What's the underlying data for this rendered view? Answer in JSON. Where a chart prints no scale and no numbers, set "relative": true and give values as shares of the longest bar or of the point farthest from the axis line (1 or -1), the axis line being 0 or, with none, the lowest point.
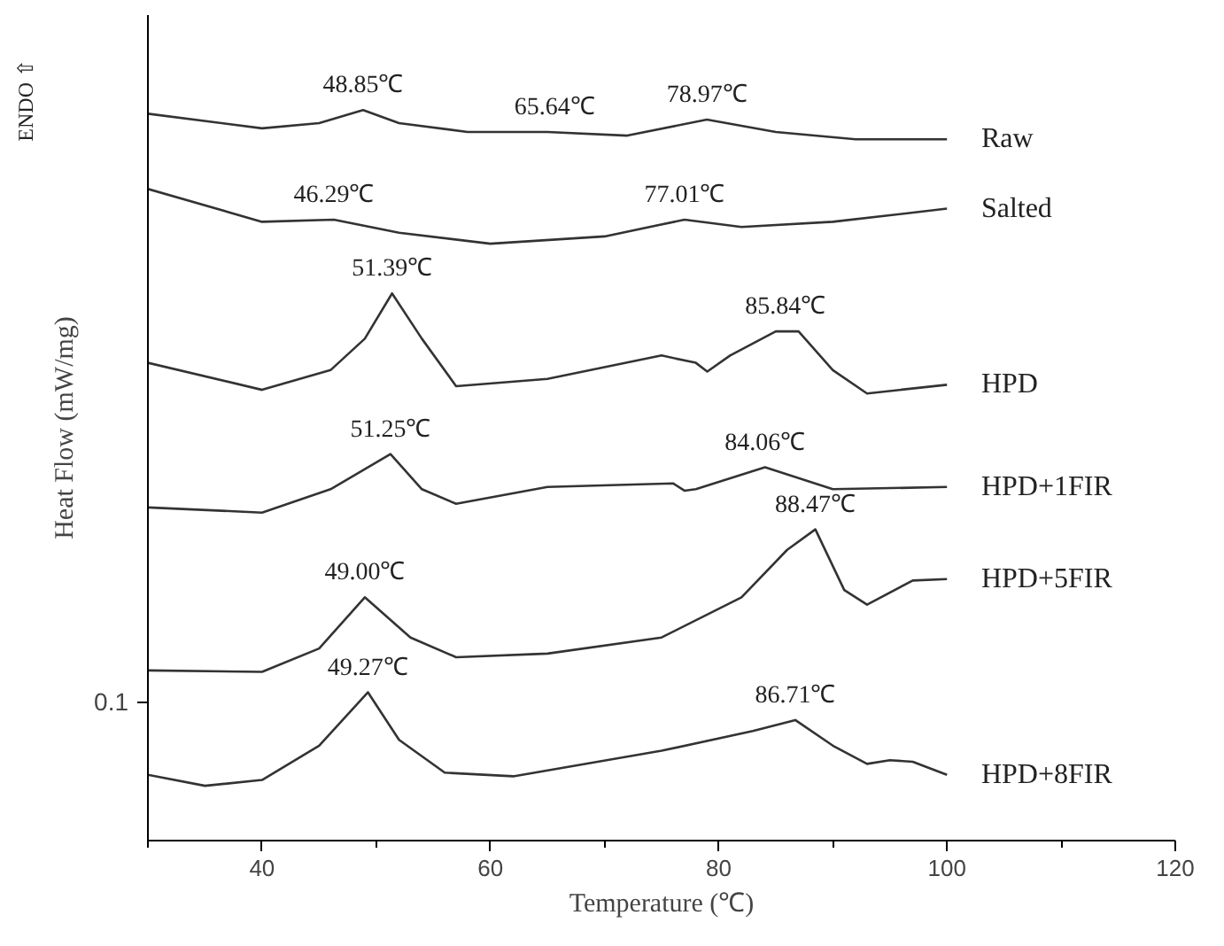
{
  "chart_data": {
    "type": "line",
    "relative": true,
    "xlabel": "Temperature (℃)",
    "ylabel": "Heat Flow (mW/mg)",
    "xlim": [
      30,
      120
    ],
    "xticks": [
      40,
      60,
      80,
      100,
      120
    ],
    "grid": false,
    "marker": "none",
    "line_style": "solid",
    "series": [
      {
        "name": "Raw",
        "color": "#333333",
        "x": [
          30,
          40,
          45,
          48.85,
          52,
          58,
          65,
          72,
          78.97,
          85,
          92,
          100
        ],
        "values": [
          0.995,
          0.975,
          0.982,
          1.0,
          0.982,
          0.97,
          0.97,
          0.965,
          0.987,
          0.97,
          0.96,
          0.96
        ]
      },
      {
        "name": "Salted",
        "color": "#333333",
        "x": [
          30,
          40,
          46.29,
          52,
          60,
          70,
          77.01,
          82,
          90,
          100
        ],
        "values": [
          0.892,
          0.847,
          0.85,
          0.832,
          0.817,
          0.827,
          0.85,
          0.84,
          0.847,
          0.865
        ]
      },
      {
        "name": "HPD",
        "color": "#333333",
        "x": [
          30,
          40,
          46,
          49,
          51.39,
          54,
          57,
          65,
          75,
          78,
          79,
          81,
          85,
          87,
          90,
          93,
          100
        ],
        "values": [
          0.654,
          0.617,
          0.644,
          0.687,
          0.749,
          0.687,
          0.622,
          0.632,
          0.664,
          0.654,
          0.642,
          0.664,
          0.697,
          0.697,
          0.644,
          0.612,
          0.624
        ]
      },
      {
        "name": "HPD+1FIR",
        "color": "#333333",
        "x": [
          30,
          40,
          46,
          51.25,
          54,
          57,
          65,
          76,
          77,
          78,
          84.06,
          90,
          100
        ],
        "values": [
          0.456,
          0.449,
          0.481,
          0.529,
          0.481,
          0.461,
          0.484,
          0.489,
          0.479,
          0.481,
          0.511,
          0.481,
          0.484
        ]
      },
      {
        "name": "HPD+5FIR",
        "color": "#333333",
        "x": [
          30,
          40,
          45,
          49,
          53,
          57,
          65,
          75,
          82,
          86,
          88.47,
          91,
          93,
          97,
          100
        ],
        "values": [
          0.233,
          0.231,
          0.263,
          0.333,
          0.278,
          0.251,
          0.256,
          0.278,
          0.333,
          0.398,
          0.426,
          0.343,
          0.323,
          0.356,
          0.358
        ]
      },
      {
        "name": "HPD+8FIR",
        "color": "#333333",
        "x": [
          30,
          35,
          40,
          45,
          49.27,
          52,
          56,
          62,
          75,
          83,
          86.71,
          90,
          93,
          95,
          97,
          100
        ],
        "values": [
          0.09,
          0.075,
          0.083,
          0.13,
          0.203,
          0.138,
          0.093,
          0.088,
          0.123,
          0.15,
          0.165,
          0.13,
          0.105,
          0.11,
          0.108,
          0.09
        ]
      }
    ],
    "annotations": [
      "ENDO ⇧",
      "0.1",
      {
        "text": "48.85℃",
        "x": 48.85,
        "y": 1.0
      },
      {
        "text": "65.64℃",
        "x": 65.64,
        "y": 0.97
      },
      {
        "text": "78.97℃",
        "x": 78.97,
        "y": 0.987
      },
      {
        "text": "46.29℃",
        "x": 46.29,
        "y": 0.85
      },
      {
        "text": "77.01℃",
        "x": 77.01,
        "y": 0.85
      },
      {
        "text": "51.39℃",
        "x": 51.39,
        "y": 0.749
      },
      {
        "text": "85.84℃",
        "x": 85.84,
        "y": 0.697
      },
      {
        "text": "51.25℃",
        "x": 51.25,
        "y": 0.529
      },
      {
        "text": "84.06℃",
        "x": 84.06,
        "y": 0.511
      },
      {
        "text": "49.00℃",
        "x": 49.0,
        "y": 0.333
      },
      {
        "text": "88.47℃",
        "x": 88.47,
        "y": 0.426
      },
      {
        "text": "49.27℃",
        "x": 49.27,
        "y": 0.203
      },
      {
        "text": "86.71℃",
        "x": 86.71,
        "y": 0.165
      }
    ]
  }
}
